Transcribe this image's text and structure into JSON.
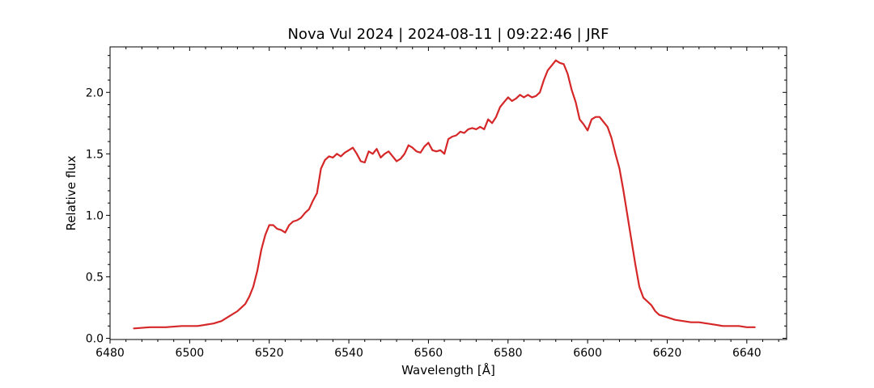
{
  "chart_data": {
    "type": "line",
    "title": "Nova Vul 2024 | 2024-08-11 | 09:22:46 | JRF",
    "xlabel": "Wavelength [Å]",
    "ylabel": "Relative flux",
    "xlim": [
      6480,
      6650
    ],
    "ylim": [
      -0.01,
      2.37
    ],
    "x_ticks": [
      6480,
      6500,
      6520,
      6540,
      6560,
      6580,
      6600,
      6620,
      6640
    ],
    "x_tick_labels": [
      "6480",
      "6500",
      "6520",
      "6540",
      "6560",
      "6580",
      "6600",
      "6620",
      "6640"
    ],
    "y_ticks": [
      0.0,
      0.5,
      1.0,
      1.5,
      2.0
    ],
    "y_tick_labels": [
      "0.0",
      "0.5",
      "1.0",
      "1.5",
      "2.0"
    ],
    "grid": false,
    "legend": "none",
    "color": "#d62728",
    "series": [
      {
        "x": [
          6486,
          6490,
          6494,
          6498,
          6502,
          6506,
          6508,
          6510,
          6512,
          6514,
          6515,
          6516,
          6517,
          6518,
          6519,
          6520,
          6521,
          6522,
          6523,
          6524,
          6525,
          6526,
          6527,
          6528,
          6529,
          6530,
          6531,
          6532,
          6533,
          6534,
          6535,
          6536,
          6537,
          6538,
          6539,
          6540,
          6541,
          6542,
          6543,
          6544,
          6545,
          6546,
          6547,
          6548,
          6549,
          6550,
          6551,
          6552,
          6553,
          6554,
          6555,
          6556,
          6557,
          6558,
          6559,
          6560,
          6561,
          6562,
          6563,
          6564,
          6565,
          6566,
          6567,
          6568,
          6569,
          6570,
          6571,
          6572,
          6573,
          6574,
          6575,
          6576,
          6577,
          6578,
          6579,
          6580,
          6581,
          6582,
          6583,
          6584,
          6585,
          6586,
          6587,
          6588,
          6589,
          6590,
          6591,
          6592,
          6593,
          6594,
          6595,
          6596,
          6597,
          6598,
          6599,
          6600,
          6601,
          6602,
          6603,
          6604,
          6605,
          6606,
          6607,
          6608,
          6609,
          6610,
          6611,
          6612,
          6613,
          6614,
          6615,
          6616,
          6617,
          6618,
          6620,
          6622,
          6624,
          6626,
          6628,
          6630,
          6632,
          6634,
          6636,
          6638,
          6640,
          6642
        ],
        "y": [
          0.08,
          0.09,
          0.09,
          0.1,
          0.1,
          0.12,
          0.14,
          0.18,
          0.22,
          0.28,
          0.34,
          0.42,
          0.55,
          0.72,
          0.84,
          0.92,
          0.92,
          0.89,
          0.88,
          0.86,
          0.92,
          0.95,
          0.96,
          0.98,
          1.02,
          1.05,
          1.12,
          1.18,
          1.38,
          1.45,
          1.48,
          1.47,
          1.5,
          1.48,
          1.51,
          1.53,
          1.55,
          1.5,
          1.44,
          1.43,
          1.52,
          1.5,
          1.54,
          1.47,
          1.5,
          1.52,
          1.48,
          1.44,
          1.46,
          1.5,
          1.57,
          1.55,
          1.52,
          1.51,
          1.56,
          1.59,
          1.53,
          1.52,
          1.53,
          1.5,
          1.62,
          1.64,
          1.65,
          1.68,
          1.67,
          1.7,
          1.71,
          1.7,
          1.72,
          1.7,
          1.78,
          1.75,
          1.8,
          1.88,
          1.92,
          1.96,
          1.93,
          1.95,
          1.98,
          1.96,
          1.98,
          1.96,
          1.97,
          2.0,
          2.1,
          2.18,
          2.22,
          2.26,
          2.24,
          2.23,
          2.15,
          2.02,
          1.92,
          1.78,
          1.74,
          1.69,
          1.78,
          1.8,
          1.8,
          1.76,
          1.72,
          1.63,
          1.5,
          1.38,
          1.2,
          1.0,
          0.8,
          0.6,
          0.42,
          0.33,
          0.3,
          0.27,
          0.22,
          0.19,
          0.17,
          0.15,
          0.14,
          0.13,
          0.13,
          0.12,
          0.11,
          0.1,
          0.1,
          0.1,
          0.09,
          0.09
        ]
      }
    ]
  }
}
